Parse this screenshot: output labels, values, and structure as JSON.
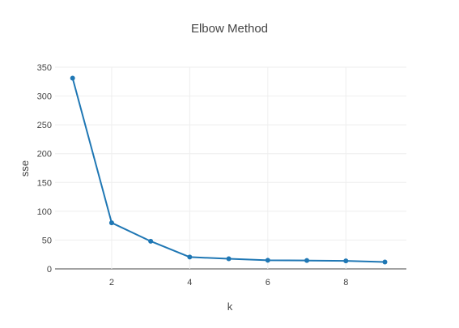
{
  "chart_data": {
    "type": "line",
    "title": "Elbow Method",
    "xlabel": "k",
    "ylabel": "sse",
    "x": [
      1,
      2,
      3,
      4,
      5,
      6,
      7,
      8,
      9
    ],
    "series": [
      {
        "values": [
          331,
          80,
          48,
          20.5,
          17.5,
          15,
          14.5,
          13.8,
          12
        ]
      }
    ],
    "xlim": [
      0.55,
      9.55
    ],
    "ylim": [
      0,
      350
    ],
    "xticks": [
      2,
      4,
      6,
      8
    ],
    "yticks": [
      0,
      50,
      100,
      150,
      200,
      250,
      300,
      350
    ],
    "grid": true,
    "legend": false,
    "colors": {
      "series": "#1f77b4",
      "grid": "#eeeeee",
      "axis": "#444444"
    }
  }
}
